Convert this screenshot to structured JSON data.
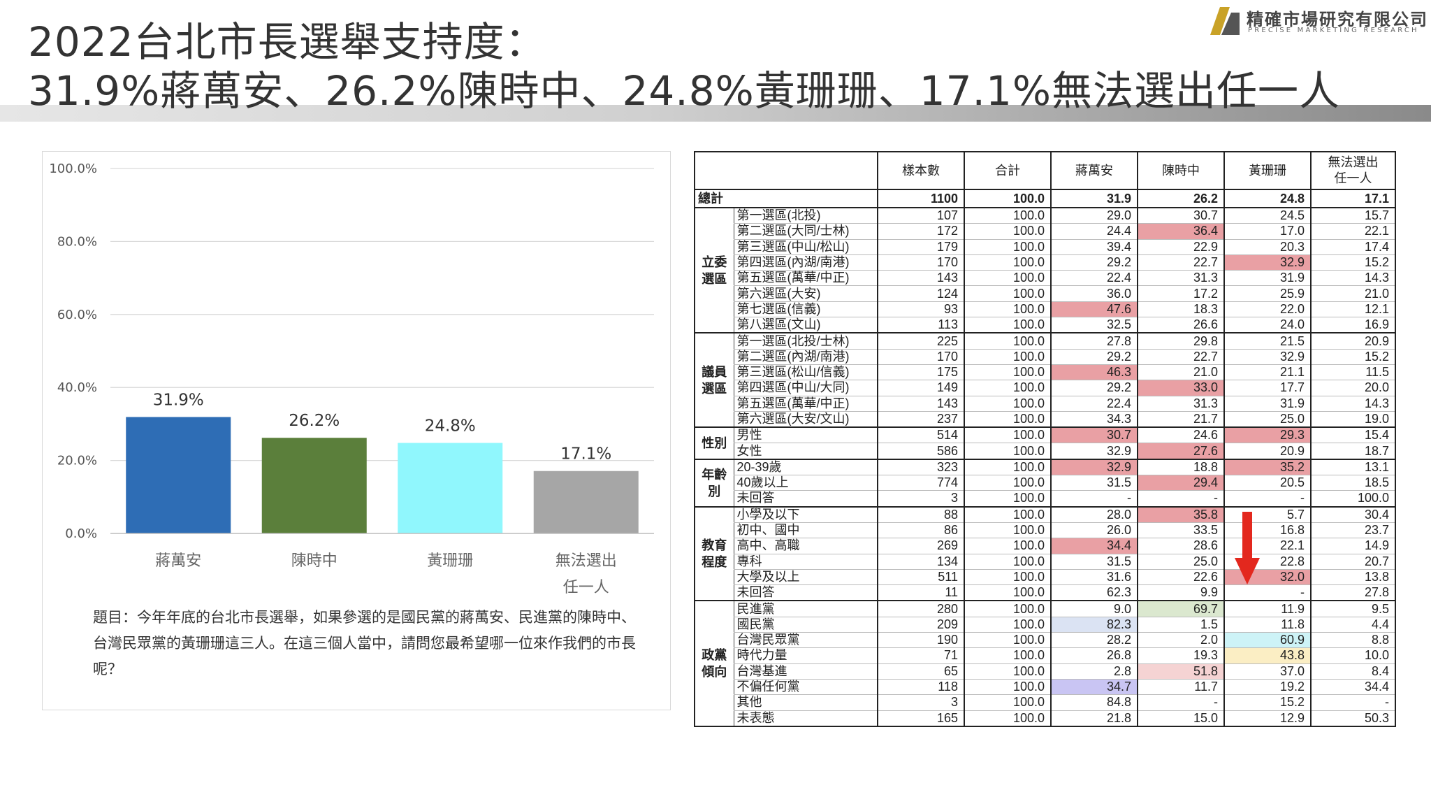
{
  "header": {
    "title_line1": "2022台北市長選舉支持度：",
    "title_line2": "31.9%蔣萬安、26.2%陳時中、24.8%黃珊珊、17.1%無法選出任一人",
    "company_cn": "精確市場研究有限公司",
    "company_en": "PRECISE MARKETING RESEARCH",
    "logo_colors": [
      "#c9a227",
      "#555555"
    ]
  },
  "chart_data": {
    "type": "bar",
    "categories": [
      "蔣萬安",
      "陳時中",
      "黃珊珊",
      "無法選出任一人"
    ],
    "category_lines": [
      [
        "蔣萬安"
      ],
      [
        "陳時中"
      ],
      [
        "黃珊珊"
      ],
      [
        "無法選出",
        "任一人"
      ]
    ],
    "values": [
      31.9,
      26.2,
      24.8,
      17.1
    ],
    "value_labels": [
      "31.9%",
      "26.2%",
      "24.8%",
      "17.1%"
    ],
    "colors": [
      "#2e6db5",
      "#5b7f3b",
      "#90f7fd",
      "#a6a6a6"
    ],
    "ylim": [
      0,
      100
    ],
    "yticks": [
      0,
      20,
      40,
      60,
      80,
      100
    ],
    "ytick_labels": [
      "0.0%",
      "20.0%",
      "40.0%",
      "60.0%",
      "80.0%",
      "100.0%"
    ],
    "grid": true,
    "title": "",
    "xlabel": "",
    "ylabel": ""
  },
  "question": "題目：今年年底的台北市長選舉，如果參選的是國民黨的蔣萬安、民進黨的陳時中、台灣民眾黨的黃珊珊這三人。在這三個人當中，請問您最希望哪一位來作我們的市長呢？",
  "table": {
    "columns": [
      "樣本數",
      "合計",
      "蔣萬安",
      "陳時中",
      "黃珊珊",
      "無法選出任一人"
    ],
    "column_lines": [
      [
        "樣本數"
      ],
      [
        "合計"
      ],
      [
        "蔣萬安"
      ],
      [
        "陳時中"
      ],
      [
        "黃珊珊"
      ],
      [
        "無法選出",
        "任一人"
      ]
    ],
    "total": {
      "label": "總計",
      "values": [
        "1100",
        "100.0",
        "31.9",
        "26.2",
        "24.8",
        "17.1"
      ]
    },
    "groups": [
      {
        "label_lines": [
          "立委",
          "選區"
        ],
        "rows": [
          {
            "label": "第一選區(北投)",
            "values": [
              "107",
              "100.0",
              "29.0",
              "30.7",
              "24.5",
              "15.7"
            ],
            "hl": {}
          },
          {
            "label": "第二選區(大同/士林)",
            "values": [
              "172",
              "100.0",
              "24.4",
              "36.4",
              "17.0",
              "22.1"
            ],
            "hl": {
              "3": "#e9a0a4"
            }
          },
          {
            "label": "第三選區(中山/松山)",
            "values": [
              "179",
              "100.0",
              "39.4",
              "22.9",
              "20.3",
              "17.4"
            ],
            "hl": {}
          },
          {
            "label": "第四選區(內湖/南港)",
            "values": [
              "170",
              "100.0",
              "29.2",
              "22.7",
              "32.9",
              "15.2"
            ],
            "hl": {
              "4": "#e9a0a4"
            }
          },
          {
            "label": "第五選區(萬華/中正)",
            "values": [
              "143",
              "100.0",
              "22.4",
              "31.3",
              "31.9",
              "14.3"
            ],
            "hl": {}
          },
          {
            "label": "第六選區(大安)",
            "values": [
              "124",
              "100.0",
              "36.0",
              "17.2",
              "25.9",
              "21.0"
            ],
            "hl": {}
          },
          {
            "label": "第七選區(信義)",
            "values": [
              "93",
              "100.0",
              "47.6",
              "18.3",
              "22.0",
              "12.1"
            ],
            "hl": {
              "2": "#e9a0a4"
            }
          },
          {
            "label": "第八選區(文山)",
            "values": [
              "113",
              "100.0",
              "32.5",
              "26.6",
              "24.0",
              "16.9"
            ],
            "hl": {}
          }
        ]
      },
      {
        "label_lines": [
          "議員",
          "選區"
        ],
        "rows": [
          {
            "label": "第一選區(北投/士林)",
            "values": [
              "225",
              "100.0",
              "27.8",
              "29.8",
              "21.5",
              "20.9"
            ],
            "hl": {}
          },
          {
            "label": "第二選區(內湖/南港)",
            "values": [
              "170",
              "100.0",
              "29.2",
              "22.7",
              "32.9",
              "15.2"
            ],
            "hl": {}
          },
          {
            "label": "第三選區(松山/信義)",
            "values": [
              "175",
              "100.0",
              "46.3",
              "21.0",
              "21.1",
              "11.5"
            ],
            "hl": {
              "2": "#e9a0a4"
            }
          },
          {
            "label": "第四選區(中山/大同)",
            "values": [
              "149",
              "100.0",
              "29.2",
              "33.0",
              "17.7",
              "20.0"
            ],
            "hl": {
              "3": "#e9a0a4"
            }
          },
          {
            "label": "第五選區(萬華/中正)",
            "values": [
              "143",
              "100.0",
              "22.4",
              "31.3",
              "31.9",
              "14.3"
            ],
            "hl": {}
          },
          {
            "label": "第六選區(大安/文山)",
            "values": [
              "237",
              "100.0",
              "34.3",
              "21.7",
              "25.0",
              "19.0"
            ],
            "hl": {}
          }
        ]
      },
      {
        "label_lines": [
          "性別"
        ],
        "rows": [
          {
            "label": "男性",
            "values": [
              "514",
              "100.0",
              "30.7",
              "24.6",
              "29.3",
              "15.4"
            ],
            "hl": {
              "2": "#e9a0a4",
              "4": "#e9a0a4"
            }
          },
          {
            "label": "女性",
            "values": [
              "586",
              "100.0",
              "32.9",
              "27.6",
              "20.9",
              "18.7"
            ],
            "hl": {
              "3": "#e9a0a4"
            }
          }
        ]
      },
      {
        "label_lines": [
          "年齡",
          "別"
        ],
        "rows": [
          {
            "label": "20-39歲",
            "values": [
              "323",
              "100.0",
              "32.9",
              "18.8",
              "35.2",
              "13.1"
            ],
            "hl": {
              "2": "#e9a0a4",
              "4": "#e9a0a4"
            }
          },
          {
            "label": "40歲以上",
            "values": [
              "774",
              "100.0",
              "31.5",
              "29.4",
              "20.5",
              "18.5"
            ],
            "hl": {
              "3": "#e9a0a4"
            }
          },
          {
            "label": "未回答",
            "values": [
              "3",
              "100.0",
              "-",
              "-",
              "-",
              "100.0"
            ],
            "hl": {}
          }
        ]
      },
      {
        "label_lines": [
          "教育",
          "程度"
        ],
        "rows": [
          {
            "label": "小學及以下",
            "values": [
              "88",
              "100.0",
              "28.0",
              "35.8",
              "5.7",
              "30.4"
            ],
            "hl": {
              "3": "#e9a0a4"
            }
          },
          {
            "label": "初中、國中",
            "values": [
              "86",
              "100.0",
              "26.0",
              "33.5",
              "16.8",
              "23.7"
            ],
            "hl": {}
          },
          {
            "label": "高中、高職",
            "values": [
              "269",
              "100.0",
              "34.4",
              "28.6",
              "22.1",
              "14.9"
            ],
            "hl": {
              "2": "#e9a0a4"
            }
          },
          {
            "label": "專科",
            "values": [
              "134",
              "100.0",
              "31.5",
              "25.0",
              "22.8",
              "20.7"
            ],
            "hl": {}
          },
          {
            "label": "大學及以上",
            "values": [
              "511",
              "100.0",
              "31.6",
              "22.6",
              "32.0",
              "13.8"
            ],
            "hl": {
              "4": "#e9a0a4"
            }
          },
          {
            "label": "未回答",
            "values": [
              "11",
              "100.0",
              "62.3",
              "9.9",
              "-",
              "27.8"
            ],
            "hl": {}
          }
        ]
      },
      {
        "label_lines": [
          "政黨",
          "傾向"
        ],
        "rows": [
          {
            "label": "民進黨",
            "values": [
              "280",
              "100.0",
              "9.0",
              "69.7",
              "11.9",
              "9.5"
            ],
            "hl": {
              "3": "#dbe8cf"
            }
          },
          {
            "label": "國民黨",
            "values": [
              "209",
              "100.0",
              "82.3",
              "1.5",
              "11.8",
              "4.4"
            ],
            "hl": {
              "2": "#dbe3f3"
            }
          },
          {
            "label": "台灣民眾黨",
            "values": [
              "190",
              "100.0",
              "28.2",
              "2.0",
              "60.9",
              "8.8"
            ],
            "hl": {
              "4": "#cdf3f7"
            }
          },
          {
            "label": "時代力量",
            "values": [
              "71",
              "100.0",
              "26.8",
              "19.3",
              "43.8",
              "10.0"
            ],
            "hl": {
              "4": "#fbeec4"
            }
          },
          {
            "label": "台灣基進",
            "values": [
              "65",
              "100.0",
              "2.8",
              "51.8",
              "37.0",
              "8.4"
            ],
            "hl": {
              "3": "#f5d3d3"
            }
          },
          {
            "label": "不偏任何黨",
            "values": [
              "118",
              "100.0",
              "34.7",
              "11.7",
              "19.2",
              "34.4"
            ],
            "hl": {
              "2": "#c9c5f3"
            }
          },
          {
            "label": "其他",
            "values": [
              "3",
              "100.0",
              "84.8",
              "-",
              "15.2",
              "-"
            ],
            "hl": {}
          },
          {
            "label": "未表態",
            "values": [
              "165",
              "100.0",
              "21.8",
              "15.0",
              "12.9",
              "50.3"
            ],
            "hl": {}
          }
        ]
      }
    ]
  },
  "arrow_color": "#e3281e"
}
